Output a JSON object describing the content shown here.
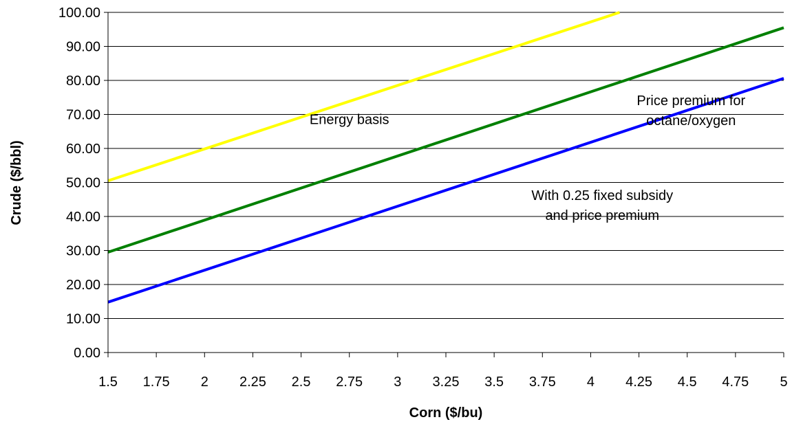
{
  "chart_data": {
    "type": "line",
    "xlabel": "Corn ($/bu)",
    "ylabel": "Crude ($/bbl)",
    "xlim": [
      1.5,
      5
    ],
    "ylim": [
      0,
      100
    ],
    "x_ticks": [
      "1.5",
      "1.75",
      "2",
      "2.25",
      "2.5",
      "2.75",
      "3",
      "3.25",
      "3.5",
      "3.75",
      "4",
      "4.25",
      "4.5",
      "4.75",
      "5"
    ],
    "y_ticks": [
      "0.00",
      "10.00",
      "20.00",
      "30.00",
      "40.00",
      "50.00",
      "60.00",
      "70.00",
      "80.00",
      "90.00",
      "100.00"
    ],
    "grid": "horizontal",
    "series": [
      {
        "color": "#ffff00",
        "x": [
          1.5,
          4.15
        ],
        "y": [
          50.5,
          100
        ]
      },
      {
        "color": "#008000",
        "x": [
          1.5,
          5
        ],
        "y": [
          29.5,
          95.5
        ]
      },
      {
        "color": "#0000ff",
        "x": [
          1.5,
          5
        ],
        "y": [
          14.8,
          80.6
        ]
      }
    ],
    "annotations": [
      {
        "lines": [
          "Energy basis"
        ],
        "x": 2.75,
        "y": 67.2
      },
      {
        "lines": [
          "Price premium for",
          "octane/oxygen"
        ],
        "x": 4.52,
        "y": 72.7
      },
      {
        "lines": [
          "With 0.25 fixed subsidy",
          "and price premium"
        ],
        "x": 4.06,
        "y": 44.8
      }
    ]
  }
}
